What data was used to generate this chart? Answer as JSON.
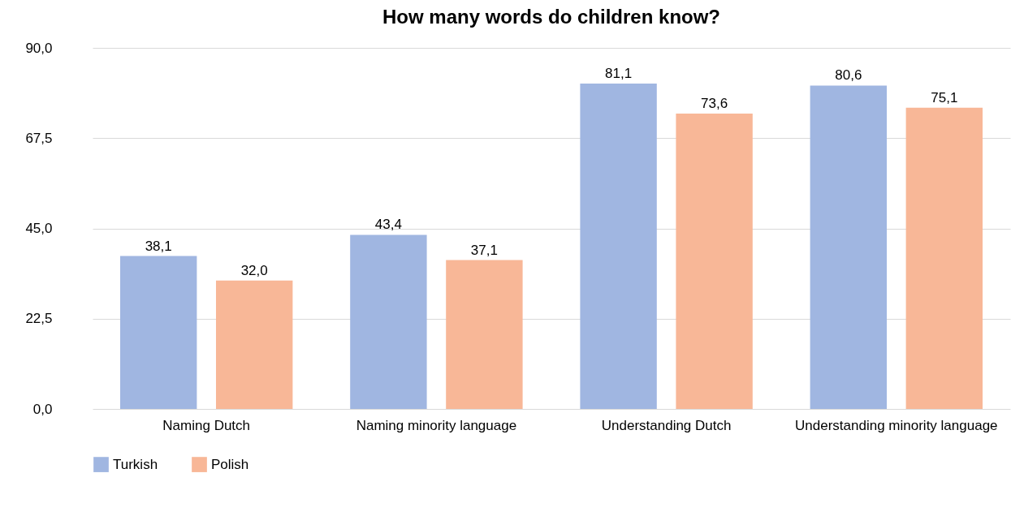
{
  "chart_data": {
    "type": "bar",
    "title": "How many words do children know?",
    "categories": [
      "Naming Dutch",
      "Naming minority language",
      "Understanding Dutch",
      "Understanding minority language"
    ],
    "series": [
      {
        "name": "Turkish",
        "color": "#a0b6e1",
        "values": [
          38.1,
          43.4,
          81.1,
          80.6
        ],
        "value_labels": [
          "38,1",
          "43,4",
          "81,1",
          "80,6"
        ]
      },
      {
        "name": "Polish",
        "color": "#f8b797",
        "values": [
          32.0,
          37.1,
          73.6,
          75.1
        ],
        "value_labels": [
          "32,0",
          "37,1",
          "73,6",
          "75,1"
        ]
      }
    ],
    "ylim": [
      0,
      90
    ],
    "yticks": [
      {
        "value": 0,
        "label": "0,0"
      },
      {
        "value": 22.5,
        "label": "22,5"
      },
      {
        "value": 45,
        "label": "45,0"
      },
      {
        "value": 67.5,
        "label": "67,5"
      },
      {
        "value": 90,
        "label": "90,0"
      }
    ],
    "grid": "y",
    "legend": "bottom"
  }
}
